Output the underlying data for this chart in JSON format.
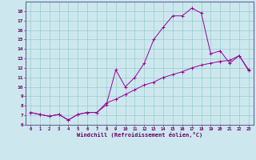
{
  "xlabel": "Windchill (Refroidissement éolien,°C)",
  "background_color": "#cce8ee",
  "line_color": "#990099",
  "grid_color": "#99cccc",
  "axis_color": "#660066",
  "text_color": "#660066",
  "spine_color": "#666699",
  "xlim": [
    -0.5,
    23.5
  ],
  "ylim": [
    6,
    19
  ],
  "xticks": [
    0,
    1,
    2,
    3,
    4,
    5,
    6,
    7,
    8,
    9,
    10,
    11,
    12,
    13,
    14,
    15,
    16,
    17,
    18,
    19,
    20,
    21,
    22,
    23
  ],
  "yticks": [
    6,
    7,
    8,
    9,
    10,
    11,
    12,
    13,
    14,
    15,
    16,
    17,
    18
  ],
  "line1_x": [
    0,
    1,
    2,
    3,
    4,
    5,
    6,
    7,
    8,
    9,
    10,
    11,
    12,
    13,
    14,
    15,
    16,
    17,
    18,
    19,
    20,
    21,
    22,
    23
  ],
  "line1_y": [
    7.3,
    7.1,
    6.9,
    7.1,
    6.5,
    7.1,
    7.3,
    7.3,
    8.1,
    11.8,
    10.0,
    11.0,
    12.5,
    15.0,
    16.3,
    17.5,
    17.5,
    18.3,
    17.8,
    13.5,
    13.8,
    12.5,
    13.3,
    11.8
  ],
  "line2_x": [
    0,
    1,
    2,
    3,
    4,
    5,
    6,
    7,
    8,
    9,
    10,
    11,
    12,
    13,
    14,
    15,
    16,
    17,
    18,
    19,
    20,
    21,
    22,
    23
  ],
  "line2_y": [
    7.3,
    7.1,
    6.9,
    7.1,
    6.5,
    7.1,
    7.3,
    7.3,
    8.3,
    8.7,
    9.2,
    9.7,
    10.2,
    10.5,
    11.0,
    11.3,
    11.6,
    12.0,
    12.3,
    12.5,
    12.7,
    12.8,
    13.3,
    11.7
  ]
}
